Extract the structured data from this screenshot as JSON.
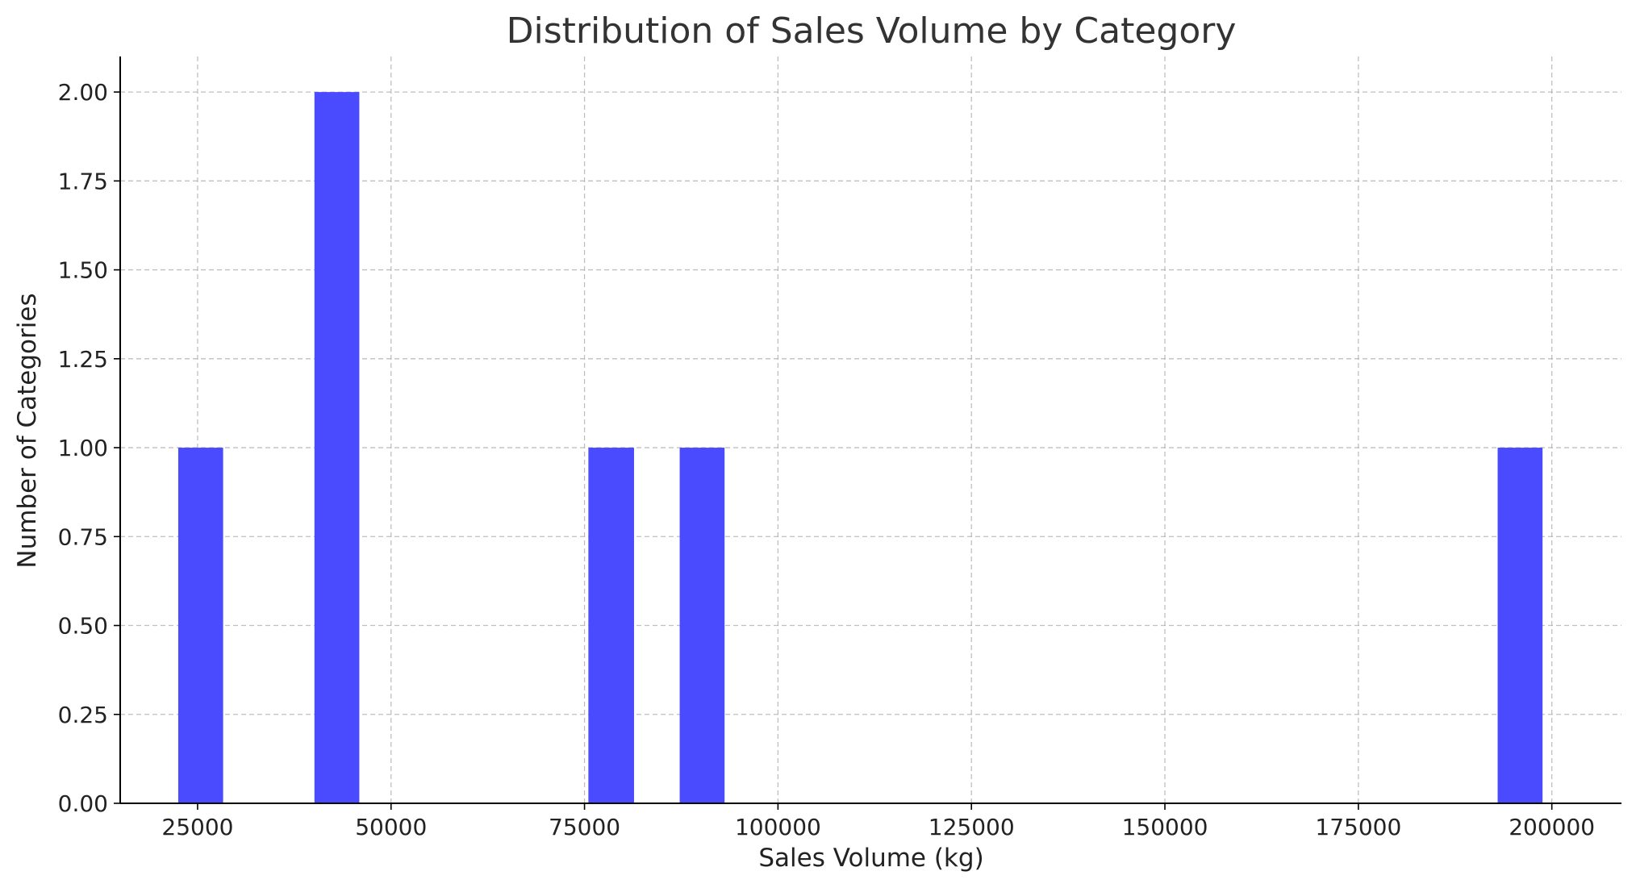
{
  "chart_data": {
    "type": "bar",
    "title": "Distribution of Sales Volume by Category",
    "xlabel": "Sales Volume (kg)",
    "ylabel": "Number of Categories",
    "xlim": [
      15000,
      209000
    ],
    "ylim": [
      0,
      2.1
    ],
    "x_ticks": [
      25000,
      50000,
      75000,
      100000,
      125000,
      150000,
      175000,
      200000
    ],
    "x_tick_labels": [
      "25000",
      "50000",
      "75000",
      "100000",
      "125000",
      "150000",
      "175000",
      "200000"
    ],
    "y_ticks": [
      0,
      0.25,
      0.5,
      0.75,
      1.0,
      1.25,
      1.5,
      1.75,
      2.0
    ],
    "y_tick_labels": [
      "0.00",
      "0.25",
      "0.50",
      "0.75",
      "1.00",
      "1.25",
      "1.50",
      "1.75",
      "2.00"
    ],
    "grid": true,
    "bar_color": "#4a4aff",
    "bins": [
      {
        "start": 22500,
        "end": 28300,
        "count": 1
      },
      {
        "start": 40100,
        "end": 45900,
        "count": 2
      },
      {
        "start": 75500,
        "end": 81400,
        "count": 1
      },
      {
        "start": 87300,
        "end": 93100,
        "count": 1
      },
      {
        "start": 193000,
        "end": 198800,
        "count": 1
      }
    ]
  }
}
